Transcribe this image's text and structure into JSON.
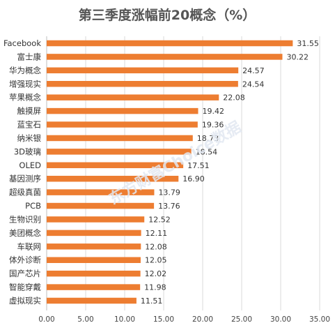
{
  "chart_data": {
    "type": "bar",
    "orientation": "horizontal",
    "title": "第三季度涨幅前20概念（%）",
    "watermark": "东方财富Choice数据",
    "categories": [
      "Facebook",
      "富士康",
      "华为概念",
      "增强现实",
      "苹果概念",
      "触摸屏",
      "蓝宝石",
      "纳米银",
      "3D玻璃",
      "OLED",
      "基因测序",
      "超级真菌",
      "PCB",
      "生物识别",
      "美团概念",
      "车联网",
      "体外诊断",
      "国产芯片",
      "智能穿戴",
      "虚拟现实"
    ],
    "values": [
      31.55,
      30.22,
      24.57,
      24.54,
      22.08,
      19.42,
      19.36,
      18.73,
      18.54,
      17.51,
      16.9,
      13.79,
      13.76,
      12.52,
      12.11,
      12.08,
      12.05,
      12.02,
      11.98,
      11.51
    ],
    "value_labels": [
      "31.55",
      "30.22",
      "24.57",
      "24.54",
      "22.08",
      "19.42",
      "19.36",
      "18.73",
      "18.54",
      "17.51",
      "16.90",
      "13.79",
      "13.76",
      "12.52",
      "12.11",
      "12.08",
      "12.05",
      "12.02",
      "11.98",
      "11.51"
    ],
    "xlim": [
      0,
      35
    ],
    "xticks": [
      "0.00",
      "5.00",
      "10.00",
      "15.00",
      "20.00",
      "25.00",
      "30.00",
      "35.00"
    ],
    "grid": true,
    "legend": "none",
    "bar_color": "#ED7D31"
  }
}
